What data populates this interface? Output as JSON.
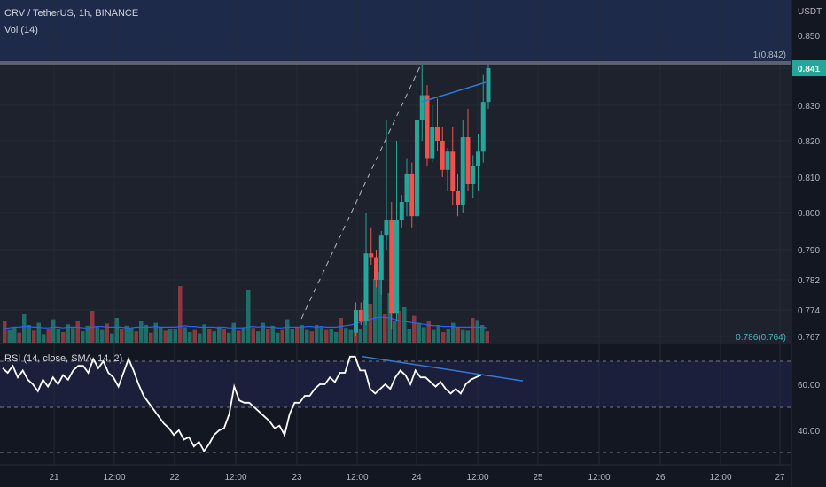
{
  "header": {
    "symbol_line": "CRV / TetherUS, 1h, BINANCE",
    "volume_label": "Vol (14)",
    "rsi_label": "RSI (14, close, SMA, 14, 2)"
  },
  "colors": {
    "background": "#131722",
    "upper_band": "#1e2a4a",
    "rsi_band": "#1b1f3b",
    "up": "#26a69a",
    "down": "#ef5350",
    "vol_up": "#1f6f68",
    "vol_down": "#8a3a3d",
    "trendline": "#2f7ad8",
    "rsi_line": "#ffffff",
    "price_badge": "#26a69a"
  },
  "chart_data": [
    {
      "type": "candlestick",
      "title": "CRV / TetherUS, 1h, BINANCE",
      "ylabel": "USDT",
      "y_tick_labels": [
        "0.850",
        "0.841",
        "0.830",
        "0.820",
        "0.810",
        "0.800",
        "0.790",
        "0.782",
        "0.774",
        "0.767"
      ],
      "x_tick_labels": [
        "21",
        "12:00",
        "22",
        "12:00",
        "23",
        "12:00",
        "24",
        "12:00",
        "25",
        "12:00",
        "26",
        "12:00",
        "27"
      ],
      "fib_levels": [
        {
          "label": "1(0.842)",
          "value": 0.842
        },
        {
          "label": "0.786(0.764)",
          "value": 0.764
        }
      ],
      "last_price": "0.841",
      "candles": [
        {
          "o": 0.768,
          "h": 0.776,
          "l": 0.767,
          "c": 0.774
        },
        {
          "o": 0.774,
          "h": 0.776,
          "l": 0.77,
          "c": 0.771
        },
        {
          "o": 0.771,
          "h": 0.8,
          "l": 0.77,
          "c": 0.789
        },
        {
          "o": 0.789,
          "h": 0.796,
          "l": 0.786,
          "c": 0.788
        },
        {
          "o": 0.788,
          "h": 0.79,
          "l": 0.78,
          "c": 0.782
        },
        {
          "o": 0.782,
          "h": 0.795,
          "l": 0.778,
          "c": 0.794
        },
        {
          "o": 0.794,
          "h": 0.826,
          "l": 0.79,
          "c": 0.798
        },
        {
          "o": 0.798,
          "h": 0.803,
          "l": 0.769,
          "c": 0.773
        },
        {
          "o": 0.773,
          "h": 0.82,
          "l": 0.771,
          "c": 0.798
        },
        {
          "o": 0.798,
          "h": 0.805,
          "l": 0.796,
          "c": 0.803
        },
        {
          "o": 0.803,
          "h": 0.815,
          "l": 0.799,
          "c": 0.811
        },
        {
          "o": 0.811,
          "h": 0.814,
          "l": 0.796,
          "c": 0.799
        },
        {
          "o": 0.799,
          "h": 0.832,
          "l": 0.797,
          "c": 0.826
        },
        {
          "o": 0.826,
          "h": 0.842,
          "l": 0.82,
          "c": 0.833
        },
        {
          "o": 0.833,
          "h": 0.836,
          "l": 0.813,
          "c": 0.815
        },
        {
          "o": 0.815,
          "h": 0.83,
          "l": 0.814,
          "c": 0.824
        },
        {
          "o": 0.824,
          "h": 0.832,
          "l": 0.817,
          "c": 0.82
        },
        {
          "o": 0.82,
          "h": 0.824,
          "l": 0.81,
          "c": 0.812
        },
        {
          "o": 0.812,
          "h": 0.818,
          "l": 0.806,
          "c": 0.817
        },
        {
          "o": 0.817,
          "h": 0.824,
          "l": 0.802,
          "c": 0.806
        },
        {
          "o": 0.806,
          "h": 0.811,
          "l": 0.799,
          "c": 0.802
        },
        {
          "o": 0.802,
          "h": 0.826,
          "l": 0.8,
          "c": 0.821
        },
        {
          "o": 0.821,
          "h": 0.829,
          "l": 0.806,
          "c": 0.808
        },
        {
          "o": 0.808,
          "h": 0.816,
          "l": 0.804,
          "c": 0.813
        },
        {
          "o": 0.813,
          "h": 0.822,
          "l": 0.806,
          "c": 0.817
        },
        {
          "o": 0.817,
          "h": 0.839,
          "l": 0.814,
          "c": 0.831
        },
        {
          "o": 0.831,
          "h": 0.842,
          "l": 0.829,
          "c": 0.841
        }
      ]
    },
    {
      "type": "bar",
      "title": "Vol (14)",
      "values": [
        30,
        18,
        22,
        14,
        40,
        25,
        17,
        28,
        12,
        20,
        33,
        19,
        15,
        26,
        21,
        30,
        16,
        24,
        45,
        22,
        18,
        27,
        13,
        35,
        19,
        24,
        21,
        16,
        30,
        25,
        14,
        28,
        22,
        17,
        20,
        19,
        80,
        22,
        15,
        18,
        13,
        26,
        20,
        16,
        23,
        19,
        14,
        28,
        17,
        22,
        75,
        21,
        16,
        28,
        19,
        24,
        14,
        18,
        33,
        20,
        22,
        25,
        18,
        16,
        25,
        22,
        18,
        20,
        15,
        35,
        21,
        18,
        30,
        20,
        60,
        55,
        90,
        100,
        40,
        70,
        30,
        45,
        50,
        20,
        38,
        28,
        22,
        30,
        18,
        25,
        15,
        20,
        28,
        22,
        18,
        17,
        35,
        32,
        25,
        16
      ],
      "ma": [
        20,
        21,
        22,
        22,
        23,
        23,
        22,
        22,
        21,
        21,
        22,
        22,
        21,
        22,
        22,
        22,
        21,
        21,
        22,
        23,
        23,
        22,
        22,
        22,
        22,
        21,
        21,
        22,
        22,
        22,
        22,
        23,
        22,
        22,
        22,
        22,
        23,
        24,
        23,
        23,
        22,
        22,
        22,
        22,
        21,
        22,
        21,
        21,
        21,
        21,
        22,
        23,
        22,
        23,
        22,
        22,
        21,
        21,
        22,
        22,
        22,
        22,
        23,
        23,
        22,
        23,
        22,
        22,
        22,
        23,
        24,
        25,
        27,
        29,
        31,
        33,
        35,
        36,
        36,
        35,
        33,
        31,
        30,
        29,
        28,
        27,
        26,
        25,
        24,
        24,
        23,
        23,
        23,
        22,
        22,
        22,
        22,
        22,
        22,
        21
      ]
    },
    {
      "type": "line",
      "title": "RSI (14, close, SMA, 14, 2)",
      "y_tick_labels": [
        "60.00",
        "40.00"
      ],
      "ylim": [
        30,
        75
      ],
      "values": [
        67,
        65,
        68,
        63,
        66,
        62,
        60,
        57,
        62,
        59,
        63,
        60,
        64,
        62,
        66,
        68,
        68,
        65,
        71,
        67,
        70,
        65,
        63,
        59,
        65,
        71,
        66,
        60,
        55,
        52,
        49,
        46,
        43,
        41,
        38,
        40,
        36,
        37,
        33,
        35,
        31,
        34,
        38,
        40,
        41,
        47,
        59,
        53,
        52,
        52,
        50,
        48,
        46,
        44,
        41,
        42,
        38,
        47,
        52,
        52,
        55,
        55,
        58,
        60,
        60,
        63,
        61,
        65,
        65,
        72,
        72,
        66,
        66,
        58,
        56,
        58,
        60,
        58,
        63,
        66,
        64,
        60,
        66,
        63,
        63,
        61,
        59,
        61,
        58,
        56,
        58,
        56,
        60,
        62,
        63,
        64
      ],
      "trend_line": [
        [
          62,
          72
        ],
        [
          85,
          63
        ]
      ]
    }
  ]
}
